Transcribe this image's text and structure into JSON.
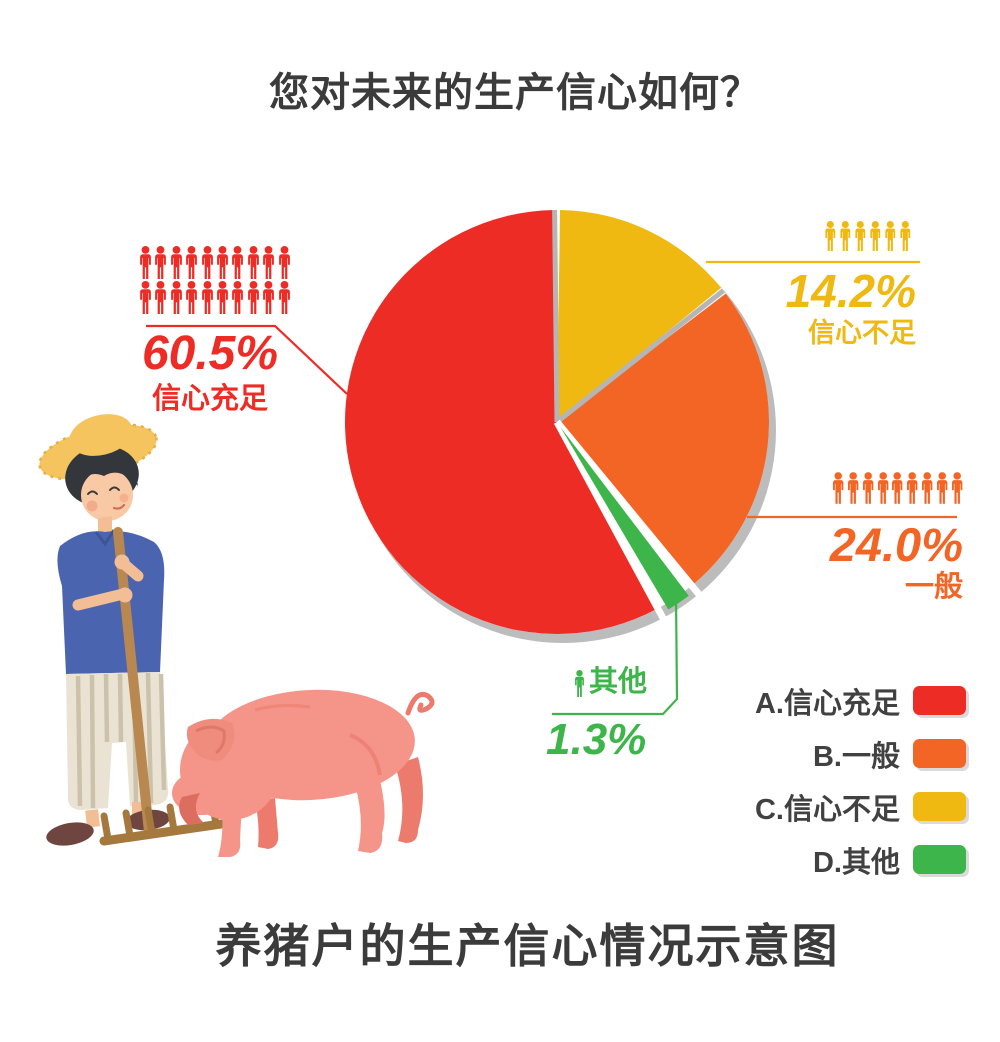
{
  "titles": {
    "question": "您对未来的生产信心如何？",
    "caption": "养猪户的生产信心情况示意图"
  },
  "chart_data": {
    "type": "pie",
    "title": "您对未来的生产信心如何？",
    "caption": "养猪户的生产信心情况示意图",
    "unit": "%",
    "slices": [
      {
        "option": "A",
        "label": "信心充足",
        "pct": 60.5,
        "pct_text": "60.5%",
        "color": "#ee2c26",
        "pictogram_people": 20
      },
      {
        "option": "B",
        "label": "一般",
        "pct": 24.0,
        "pct_text": "24.0%",
        "color": "#f26524",
        "pictogram_people": 9
      },
      {
        "option": "C",
        "label": "信心不足",
        "pct": 14.2,
        "pct_text": "14.2%",
        "color": "#efb912",
        "pictogram_people": 6
      },
      {
        "option": "D",
        "label": "其他",
        "pct": 1.3,
        "pct_text": "1.3%",
        "color": "#3db54a",
        "pictogram_people": 1
      }
    ],
    "order_clockwise_from_top": [
      "C",
      "B",
      "D",
      "A"
    ],
    "legend_position": "bottom-right",
    "legend": [
      {
        "label": "A.信心充足",
        "color": "#ee2c26"
      },
      {
        "label": "B.一般",
        "color": "#f26524"
      },
      {
        "label": "C.信心不足",
        "color": "#efb912"
      },
      {
        "label": "D.其他",
        "color": "#3db54a"
      }
    ]
  }
}
